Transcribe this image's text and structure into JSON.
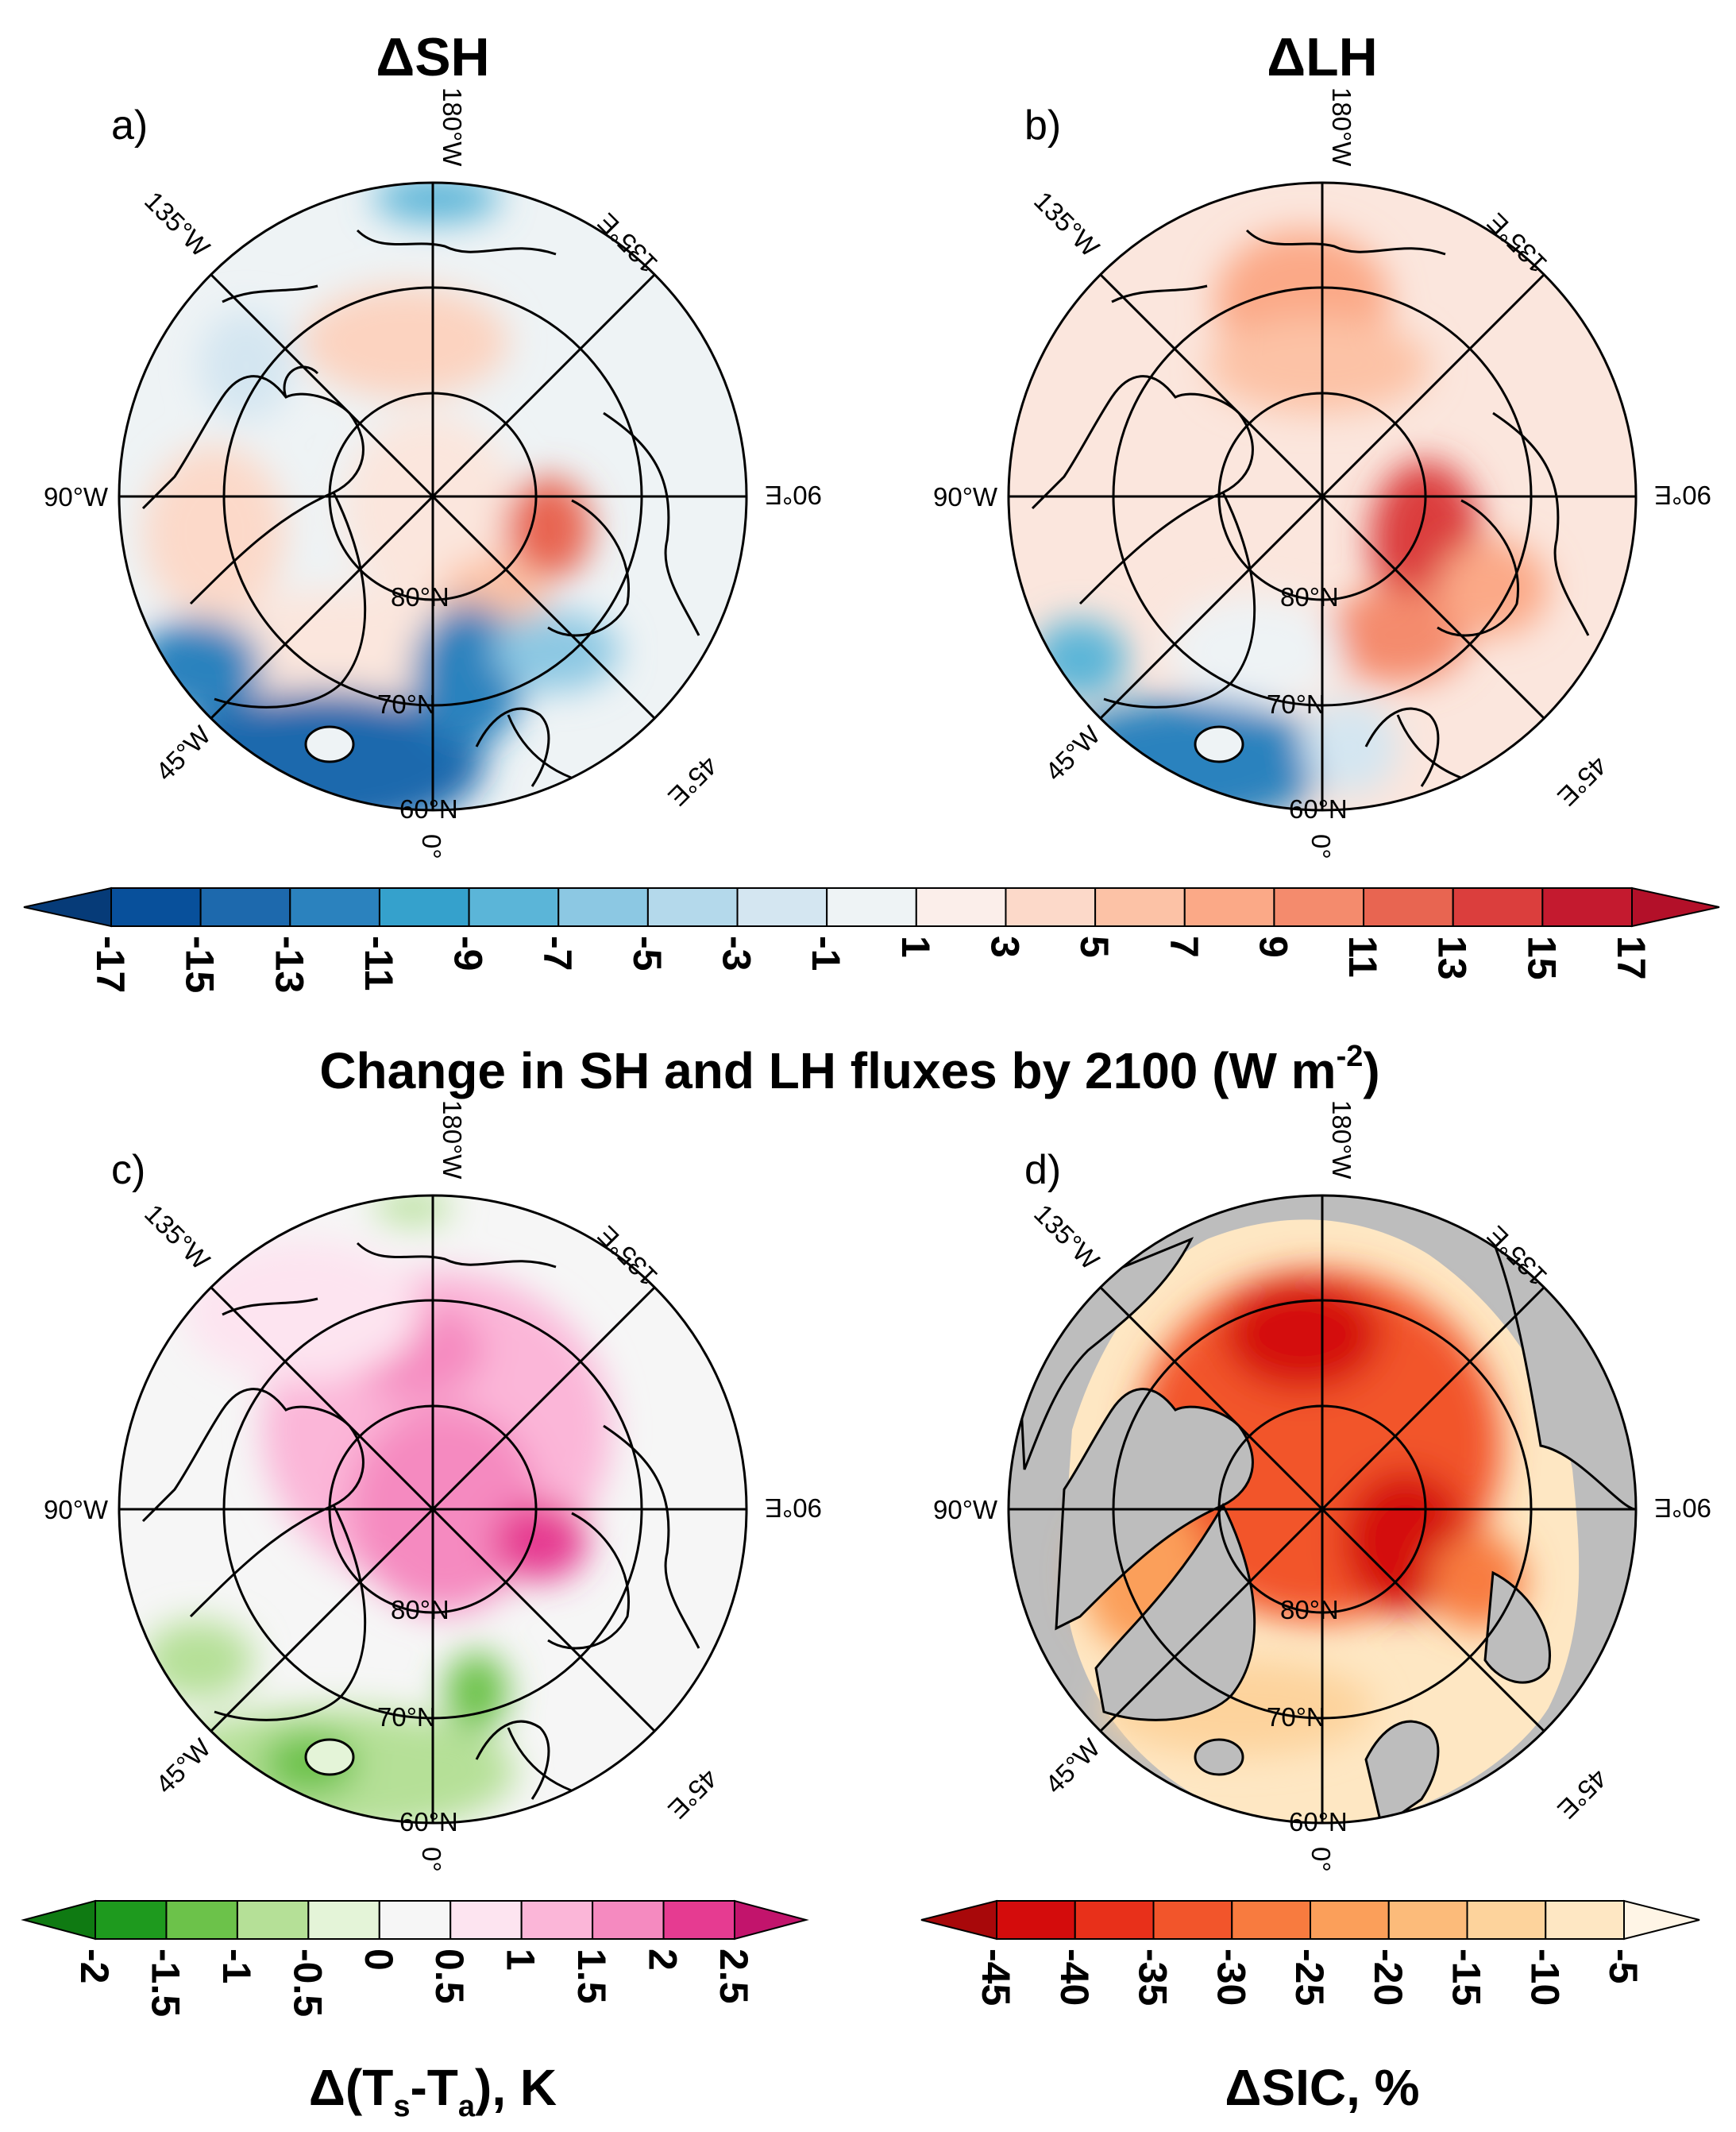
{
  "panels": [
    {
      "id": "a",
      "label": "a)",
      "title": "ΔSH",
      "cx": 0,
      "grid": true
    },
    {
      "id": "b",
      "label": "b)",
      "title": "ΔLH",
      "cx": 0,
      "grid": true
    },
    {
      "id": "c",
      "label": "c)",
      "title": "",
      "cx": 0,
      "grid": true
    },
    {
      "id": "d",
      "label": "d)",
      "title": "",
      "cx": 0,
      "grid": true
    }
  ],
  "grid_labels": {
    "top": "180°W",
    "top_left": "135°W",
    "top_right": "135°E",
    "left": "90°W",
    "right": "90°E",
    "bottom_left": "45°W",
    "bottom_right": "45°E",
    "bottom": "0°",
    "lat_80": "80°N",
    "lat_70": "70°N",
    "lat_60": "60°N"
  },
  "colorbars": {
    "flux": {
      "ticks": [
        "-17",
        "-15",
        "-13",
        "-11",
        "-9",
        "-7",
        "-5",
        "-3",
        "-1",
        "1",
        "3",
        "5",
        "7",
        "9",
        "11",
        "13",
        "15",
        "17"
      ],
      "colors": [
        "#08509b",
        "#1d69ad",
        "#2b82be",
        "#35a1cc",
        "#5bb5d8",
        "#8cc8e3",
        "#b4d9eb",
        "#d4e6f1",
        "#eef3f5",
        "#fbeeea",
        "#fcd9c9",
        "#fcc2a6",
        "#fba987",
        "#f48b6d",
        "#e86551",
        "#db3e3d",
        "#c41a2f"
      ],
      "end_low": "#063b78",
      "end_high": "#b31029",
      "title": "Change in SH and LH fluxes by 2100 (W m",
      "title_sup": "-2",
      "title_end": ")"
    },
    "tdiff": {
      "ticks": [
        "-2",
        "-1.5",
        "-1",
        "-0.5",
        "0",
        "0.5",
        "1",
        "1.5",
        "2",
        "2.5"
      ],
      "colors": [
        "#1e9a1e",
        "#6cc24a",
        "#b5e097",
        "#e4f4d8",
        "#f6f6f6",
        "#fde4f0",
        "#fbb6d8",
        "#f58ac0",
        "#e63b91"
      ],
      "end_low": "#0f7a12",
      "end_high": "#c2146c",
      "title": "Δ(T",
      "title_sub1": "s",
      "title_mid": "-T",
      "title_sub2": "a",
      "title_end": "), K"
    },
    "sic": {
      "ticks": [
        "-45",
        "-40",
        "-35",
        "-30",
        "-25",
        "-20",
        "-15",
        "-10",
        "-5"
      ],
      "colors": [
        "#d40c0c",
        "#e8301a",
        "#f2552b",
        "#f87b3f",
        "#fb9f5a",
        "#fcbb7a",
        "#fdd39c",
        "#fee7c3"
      ],
      "end_low": "#a8080a",
      "end_high": "#fff5e6",
      "title": "ΔSIC, %"
    }
  },
  "colors": {
    "land_grey": "#bdbdbd",
    "background_flux": "#eef3f5",
    "background_t": "#f6f6f6",
    "background_sic": "#fff2e2"
  }
}
